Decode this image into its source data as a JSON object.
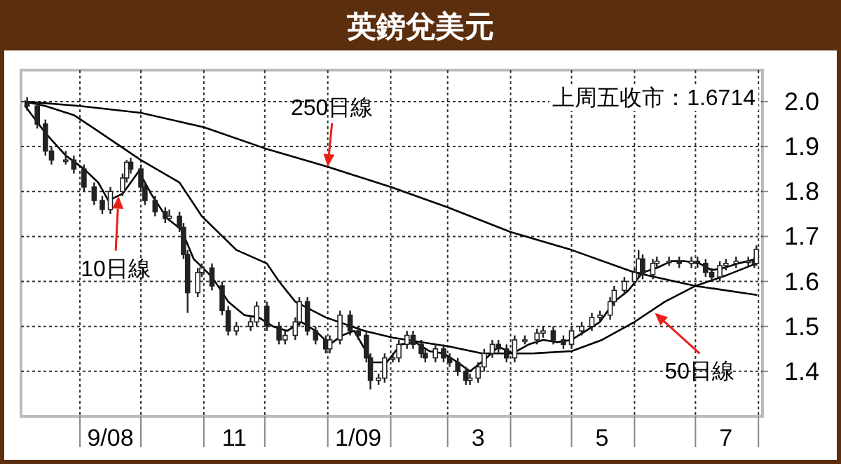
{
  "chart_data": {
    "type": "candlestick",
    "title": "英鎊兌美元",
    "x": [
      "2008-08-06",
      "2008-08-11",
      "2008-08-15",
      "2008-08-18",
      "2008-08-25",
      "2008-08-29",
      "2008-09-03",
      "2008-09-08",
      "2008-09-12",
      "2008-09-16",
      "2008-09-22",
      "2008-09-24",
      "2008-09-26",
      "2008-10-01",
      "2008-10-03",
      "2008-10-08",
      "2008-10-13",
      "2008-10-15",
      "2008-10-20",
      "2008-10-22",
      "2008-10-24",
      "2008-10-29",
      "2008-10-31",
      "2008-11-05",
      "2008-11-10",
      "2008-11-13",
      "2008-11-17",
      "2008-11-24",
      "2008-11-27",
      "2008-12-02",
      "2008-12-08",
      "2008-12-11",
      "2008-12-16",
      "2008-12-18",
      "2008-12-22",
      "2008-12-26",
      "2008-12-31",
      "2009-01-02",
      "2009-01-07",
      "2009-01-12",
      "2009-01-16",
      "2009-01-20",
      "2009-01-22",
      "2009-01-26",
      "2009-01-29",
      "2009-02-02",
      "2009-02-05",
      "2009-02-09",
      "2009-02-12",
      "2009-02-16",
      "2009-02-18",
      "2009-02-23",
      "2009-02-27",
      "2009-03-02",
      "2009-03-06",
      "2009-03-10",
      "2009-03-12",
      "2009-03-16",
      "2009-03-19",
      "2009-03-23",
      "2009-03-26",
      "2009-03-30",
      "2009-04-03",
      "2009-04-08",
      "2009-04-14",
      "2009-04-17",
      "2009-04-22",
      "2009-04-27",
      "2009-05-01",
      "2009-05-06",
      "2009-05-11",
      "2009-05-15",
      "2009-05-20",
      "2009-05-22",
      "2009-05-27",
      "2009-06-01",
      "2009-06-03",
      "2009-06-05",
      "2009-06-10",
      "2009-06-12",
      "2009-06-18",
      "2009-06-23",
      "2009-06-29",
      "2009-07-02",
      "2009-07-06",
      "2009-07-09",
      "2009-07-13",
      "2009-07-16",
      "2009-07-21",
      "2009-07-27",
      "2009-07-30",
      "2009-07-31"
    ],
    "ohlc": [
      [
        2.0,
        2.01,
        1.98,
        1.99
      ],
      [
        1.99,
        2.0,
        1.94,
        1.95
      ],
      [
        1.95,
        1.96,
        1.88,
        1.89
      ],
      [
        1.89,
        1.9,
        1.86,
        1.87
      ],
      [
        1.87,
        1.89,
        1.86,
        1.87
      ],
      [
        1.87,
        1.88,
        1.84,
        1.85
      ],
      [
        1.85,
        1.86,
        1.8,
        1.81
      ],
      [
        1.81,
        1.82,
        1.77,
        1.78
      ],
      [
        1.78,
        1.79,
        1.75,
        1.76
      ],
      [
        1.76,
        1.81,
        1.75,
        1.8
      ],
      [
        1.8,
        1.84,
        1.79,
        1.83
      ],
      [
        1.83,
        1.87,
        1.82,
        1.865
      ],
      [
        1.865,
        1.875,
        1.84,
        1.85
      ],
      [
        1.85,
        1.86,
        1.8,
        1.81
      ],
      [
        1.81,
        1.82,
        1.77,
        1.78
      ],
      [
        1.78,
        1.79,
        1.745,
        1.755
      ],
      [
        1.755,
        1.765,
        1.73,
        1.74
      ],
      [
        1.74,
        1.76,
        1.735,
        1.745
      ],
      [
        1.745,
        1.755,
        1.71,
        1.72
      ],
      [
        1.72,
        1.73,
        1.65,
        1.66
      ],
      [
        1.66,
        1.67,
        1.53,
        1.575
      ],
      [
        1.575,
        1.63,
        1.565,
        1.62
      ],
      [
        1.62,
        1.64,
        1.61,
        1.63
      ],
      [
        1.63,
        1.64,
        1.58,
        1.59
      ],
      [
        1.59,
        1.6,
        1.525,
        1.535
      ],
      [
        1.535,
        1.545,
        1.48,
        1.49
      ],
      [
        1.49,
        1.51,
        1.48,
        1.5
      ],
      [
        1.5,
        1.52,
        1.49,
        1.51
      ],
      [
        1.51,
        1.555,
        1.5,
        1.545
      ],
      [
        1.545,
        1.555,
        1.49,
        1.5
      ],
      [
        1.5,
        1.51,
        1.46,
        1.47
      ],
      [
        1.47,
        1.49,
        1.46,
        1.48
      ],
      [
        1.48,
        1.52,
        1.47,
        1.51
      ],
      [
        1.51,
        1.565,
        1.5,
        1.555
      ],
      [
        1.555,
        1.565,
        1.48,
        1.49
      ],
      [
        1.49,
        1.5,
        1.46,
        1.47
      ],
      [
        1.47,
        1.48,
        1.44,
        1.45
      ],
      [
        1.45,
        1.48,
        1.44,
        1.47
      ],
      [
        1.47,
        1.535,
        1.46,
        1.525
      ],
      [
        1.525,
        1.535,
        1.48,
        1.49
      ],
      [
        1.49,
        1.5,
        1.47,
        1.48
      ],
      [
        1.48,
        1.49,
        1.42,
        1.43
      ],
      [
        1.43,
        1.44,
        1.36,
        1.38
      ],
      [
        1.38,
        1.395,
        1.37,
        1.385
      ],
      [
        1.385,
        1.44,
        1.375,
        1.43
      ],
      [
        1.43,
        1.44,
        1.42,
        1.43
      ],
      [
        1.43,
        1.47,
        1.42,
        1.46
      ],
      [
        1.46,
        1.49,
        1.45,
        1.48
      ],
      [
        1.48,
        1.49,
        1.45,
        1.46
      ],
      [
        1.46,
        1.47,
        1.43,
        1.44
      ],
      [
        1.44,
        1.45,
        1.42,
        1.43
      ],
      [
        1.43,
        1.46,
        1.42,
        1.45
      ],
      [
        1.45,
        1.46,
        1.42,
        1.43
      ],
      [
        1.43,
        1.44,
        1.41,
        1.42
      ],
      [
        1.42,
        1.43,
        1.39,
        1.4
      ],
      [
        1.4,
        1.41,
        1.37,
        1.38
      ],
      [
        1.38,
        1.395,
        1.37,
        1.385
      ],
      [
        1.385,
        1.42,
        1.375,
        1.41
      ],
      [
        1.41,
        1.45,
        1.4,
        1.44
      ],
      [
        1.44,
        1.47,
        1.43,
        1.46
      ],
      [
        1.46,
        1.47,
        1.44,
        1.45
      ],
      [
        1.45,
        1.46,
        1.42,
        1.43
      ],
      [
        1.43,
        1.48,
        1.42,
        1.47
      ],
      [
        1.47,
        1.48,
        1.46,
        1.47
      ],
      [
        1.47,
        1.495,
        1.46,
        1.485
      ],
      [
        1.485,
        1.5,
        1.475,
        1.49
      ],
      [
        1.49,
        1.5,
        1.46,
        1.47
      ],
      [
        1.47,
        1.48,
        1.45,
        1.46
      ],
      [
        1.46,
        1.5,
        1.45,
        1.49
      ],
      [
        1.49,
        1.51,
        1.48,
        1.5
      ],
      [
        1.5,
        1.53,
        1.49,
        1.52
      ],
      [
        1.52,
        1.535,
        1.51,
        1.525
      ],
      [
        1.525,
        1.565,
        1.515,
        1.555
      ],
      [
        1.555,
        1.59,
        1.545,
        1.58
      ],
      [
        1.58,
        1.61,
        1.57,
        1.6
      ],
      [
        1.6,
        1.63,
        1.59,
        1.62
      ],
      [
        1.62,
        1.67,
        1.61,
        1.65
      ],
      [
        1.65,
        1.66,
        1.605,
        1.615
      ],
      [
        1.615,
        1.65,
        1.605,
        1.64
      ],
      [
        1.64,
        1.655,
        1.63,
        1.645
      ],
      [
        1.645,
        1.655,
        1.635,
        1.645
      ],
      [
        1.645,
        1.655,
        1.63,
        1.64
      ],
      [
        1.64,
        1.655,
        1.63,
        1.645
      ],
      [
        1.645,
        1.655,
        1.63,
        1.64
      ],
      [
        1.64,
        1.65,
        1.61,
        1.62
      ],
      [
        1.62,
        1.63,
        1.6,
        1.61
      ],
      [
        1.61,
        1.645,
        1.6,
        1.635
      ],
      [
        1.635,
        1.65,
        1.625,
        1.64
      ],
      [
        1.64,
        1.655,
        1.63,
        1.645
      ],
      [
        1.645,
        1.655,
        1.635,
        1.645
      ],
      [
        1.645,
        1.655,
        1.63,
        1.64
      ],
      [
        1.64,
        1.68,
        1.635,
        1.6714
      ]
    ],
    "series": [
      {
        "type": "line",
        "color": "#000000",
        "x": [
          "2008-08-05",
          "2008-09-01",
          "2008-10-01",
          "2008-11-01",
          "2008-12-01",
          "2009-01-01",
          "2009-02-01",
          "2009-03-01",
          "2009-04-01",
          "2009-05-01",
          "2009-06-01",
          "2009-07-01",
          "2009-07-31"
        ],
        "values": [
          2.0,
          1.99,
          1.975,
          1.943,
          1.896,
          1.855,
          1.81,
          1.765,
          1.71,
          1.67,
          1.62,
          1.59,
          1.57
        ]
      },
      {
        "type": "line",
        "color": "#000000",
        "x": [
          "2008-08-05",
          "2008-08-15",
          "2008-08-29",
          "2008-09-08",
          "2008-10-01",
          "2008-10-20",
          "2008-10-31",
          "2008-11-17",
          "2008-12-02",
          "2008-12-08",
          "2008-12-16",
          "2008-12-31",
          "2009-01-19",
          "2009-02-02",
          "2009-03-02",
          "2009-03-18",
          "2009-04-12",
          "2009-05-01",
          "2009-05-16",
          "2009-06-01",
          "2009-06-16",
          "2009-07-01",
          "2009-07-17",
          "2009-07-31"
        ],
        "values": [
          2.0,
          1.99,
          1.97,
          1.94,
          1.87,
          1.82,
          1.745,
          1.67,
          1.64,
          1.6,
          1.555,
          1.52,
          1.49,
          1.475,
          1.455,
          1.44,
          1.44,
          1.445,
          1.47,
          1.51,
          1.555,
          1.59,
          1.615,
          1.64
        ]
      },
      {
        "type": "line",
        "color": "#000000",
        "x": [
          "2008-08-05",
          "2008-08-15",
          "2008-08-25",
          "2008-09-03",
          "2008-09-10",
          "2008-09-15",
          "2008-09-22",
          "2008-09-30",
          "2008-10-06",
          "2008-10-14",
          "2008-10-21",
          "2008-10-27",
          "2008-11-05",
          "2008-11-13",
          "2008-11-21",
          "2008-11-28",
          "2008-12-05",
          "2008-12-12",
          "2008-12-19",
          "2008-12-26",
          "2009-01-02",
          "2009-01-08",
          "2009-01-14",
          "2009-01-23",
          "2009-01-30",
          "2009-02-06",
          "2009-02-13",
          "2009-02-20",
          "2009-02-27",
          "2009-03-06",
          "2009-03-12",
          "2009-03-19",
          "2009-03-26",
          "2009-04-02",
          "2009-04-10",
          "2009-04-17",
          "2009-04-24",
          "2009-05-01",
          "2009-05-08",
          "2009-05-15",
          "2009-05-22",
          "2009-05-29",
          "2009-06-05",
          "2009-06-12",
          "2009-06-19",
          "2009-06-26",
          "2009-07-03",
          "2009-07-09",
          "2009-07-15",
          "2009-07-22",
          "2009-07-31"
        ],
        "values": [
          1.99,
          1.93,
          1.88,
          1.85,
          1.82,
          1.78,
          1.795,
          1.845,
          1.795,
          1.74,
          1.715,
          1.65,
          1.61,
          1.555,
          1.525,
          1.52,
          1.5,
          1.49,
          1.51,
          1.49,
          1.46,
          1.48,
          1.49,
          1.42,
          1.42,
          1.46,
          1.465,
          1.445,
          1.44,
          1.42,
          1.4,
          1.425,
          1.455,
          1.44,
          1.46,
          1.47,
          1.465,
          1.47,
          1.49,
          1.51,
          1.555,
          1.58,
          1.62,
          1.63,
          1.645,
          1.645,
          1.64,
          1.625,
          1.63,
          1.64,
          1.65
        ]
      }
    ],
    "annotations": [
      {
        "text": "250日線",
        "x": "2009-01-01",
        "y": 1.855
      },
      {
        "text": "10日線",
        "x": "2008-09-20",
        "y": 1.79
      },
      {
        "text": "50日線",
        "x": "2009-06-11",
        "y": 1.53
      },
      "上周五收市：1.6714"
    ],
    "xlim": [
      "2008-08-03",
      "2009-08-03"
    ],
    "ylim": [
      1.3,
      2.07
    ],
    "xticks": [
      {
        "value": "2008-09-01",
        "label": null
      },
      {
        "value": "2008-09-16",
        "label": "9/08"
      },
      {
        "value": "2008-10-01",
        "label": null
      },
      {
        "value": "2008-11-01",
        "label": null
      },
      {
        "value": "2008-11-16",
        "label": "11"
      },
      {
        "value": "2008-12-01",
        "label": null
      },
      {
        "value": "2009-01-01",
        "label": null
      },
      {
        "value": "2009-01-16",
        "label": "1/09"
      },
      {
        "value": "2009-02-01",
        "label": null
      },
      {
        "value": "2009-03-01",
        "label": null
      },
      {
        "value": "2009-03-16",
        "label": "3"
      },
      {
        "value": "2009-04-01",
        "label": null
      },
      {
        "value": "2009-05-01",
        "label": null
      },
      {
        "value": "2009-05-16",
        "label": "5"
      },
      {
        "value": "2009-06-01",
        "label": null
      },
      {
        "value": "2009-07-01",
        "label": null
      },
      {
        "value": "2009-07-16",
        "label": "7"
      },
      {
        "value": "2009-08-01",
        "label": null
      }
    ],
    "yticks": [
      {
        "value": 1.4,
        "label": "1.4"
      },
      {
        "value": 1.5,
        "label": "1.5"
      },
      {
        "value": 1.6,
        "label": "1.6"
      },
      {
        "value": 1.7,
        "label": "1.7"
      },
      {
        "value": 1.8,
        "label": "1.8"
      },
      {
        "value": 1.9,
        "label": "1.9"
      },
      {
        "value": 2.0,
        "label": "2.0"
      }
    ],
    "grid": true
  }
}
